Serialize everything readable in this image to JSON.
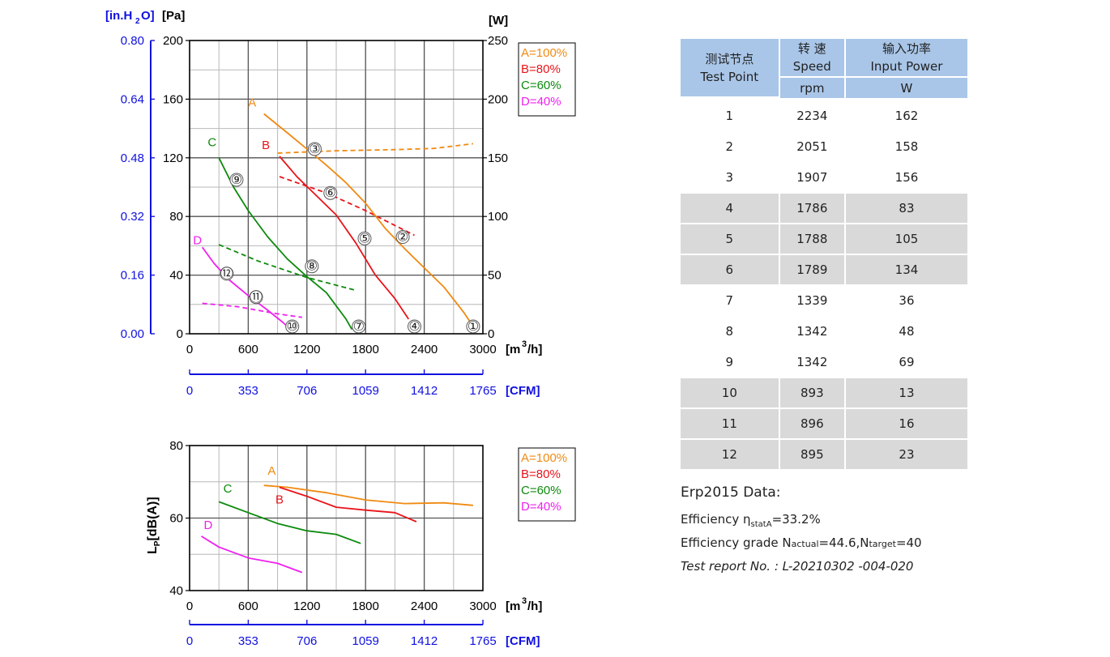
{
  "chart_data": [
    {
      "type": "line",
      "title": "",
      "units": {
        "left_outer": "[in.H2O]",
        "left_inner": "[Pa]",
        "right": "[W]",
        "x": "[m3/h]",
        "x_cfm": "[CFM]"
      },
      "xlim": [
        0,
        3000
      ],
      "ylim": [
        0,
        200
      ],
      "y2lim": [
        0,
        250
      ],
      "y_inh2o_lim": [
        0,
        0.8
      ],
      "x_ticks": [
        0,
        600,
        1200,
        1800,
        2400,
        3000
      ],
      "cfm_ticks": [
        0,
        353,
        706,
        1059,
        1412,
        1765
      ],
      "y_ticks": [
        0,
        40,
        80,
        120,
        160,
        200
      ],
      "y_inh2o_ticks": [
        "0.00",
        "0.16",
        "0.32",
        "0.48",
        "0.64",
        "0.80"
      ],
      "y2_ticks": [
        0,
        50,
        100,
        150,
        200,
        250
      ],
      "grid": true,
      "legend_position": "top-right",
      "legend": [
        "A=100%",
        "B=80%",
        "C=60%",
        "D=40%"
      ],
      "colors": {
        "A": "#f08a12",
        "B": "#e8141a",
        "C": "#0c8a0c",
        "D": "#f020f0"
      },
      "pressure_series": [
        {
          "name": "A",
          "x": [
            760,
            1000,
            1200,
            1400,
            1600,
            1800,
            2000,
            2200,
            2400,
            2600,
            2800,
            2900
          ],
          "y": [
            150,
            137,
            126,
            115,
            103,
            89,
            72,
            58,
            45,
            32,
            15,
            5
          ]
        },
        {
          "name": "B",
          "x": [
            920,
            1100,
            1300,
            1500,
            1700,
            1900,
            2100,
            2240
          ],
          "y": [
            121,
            107,
            94,
            81,
            62,
            40,
            24,
            10
          ]
        },
        {
          "name": "C",
          "x": [
            300,
            450,
            600,
            800,
            1000,
            1200,
            1400,
            1600,
            1660
          ],
          "y": [
            120,
            100,
            84,
            66,
            51,
            39,
            28,
            10,
            3
          ]
        },
        {
          "name": "D",
          "x": [
            130,
            250,
            400,
            600,
            800,
            950,
            1050
          ],
          "y": [
            59,
            48,
            37,
            26,
            16,
            8,
            2
          ]
        }
      ],
      "power_series": [
        {
          "name": "A",
          "x": [
            900,
            1500,
            2100,
            2500,
            2900
          ],
          "y": [
            154,
            156,
            157,
            158,
            162
          ]
        },
        {
          "name": "B",
          "x": [
            920,
            1400,
            1800,
            2300
          ],
          "y": [
            134,
            120,
            105,
            84
          ]
        },
        {
          "name": "C",
          "x": [
            300,
            700,
            1200,
            1700
          ],
          "y": [
            76,
            62,
            48,
            37
          ]
        },
        {
          "name": "D",
          "x": [
            130,
            500,
            900,
            1150
          ],
          "y": [
            26,
            23,
            17,
            14
          ]
        }
      ],
      "curve_labels": [
        {
          "text": "A",
          "x": 640,
          "y": 155
        },
        {
          "text": "B",
          "x": 780,
          "y": 126
        },
        {
          "text": "C",
          "x": 230,
          "y": 128
        },
        {
          "text": "D",
          "x": 80,
          "y": 61
        }
      ],
      "test_point_markers": [
        {
          "label": "①",
          "x": 2900,
          "y": 5
        },
        {
          "label": "②",
          "x": 2180,
          "y": 66
        },
        {
          "label": "③",
          "x": 1280,
          "y": 126
        },
        {
          "label": "④",
          "x": 2300,
          "y": 5
        },
        {
          "label": "⑤",
          "x": 1790,
          "y": 65
        },
        {
          "label": "⑥",
          "x": 1440,
          "y": 96
        },
        {
          "label": "⑦",
          "x": 1730,
          "y": 5
        },
        {
          "label": "⑧",
          "x": 1250,
          "y": 46
        },
        {
          "label": "⑨",
          "x": 480,
          "y": 105
        },
        {
          "label": "⑩",
          "x": 1050,
          "y": 5
        },
        {
          "label": "⑪",
          "x": 680,
          "y": 25
        },
        {
          "label": "⑫",
          "x": 380,
          "y": 41
        }
      ]
    },
    {
      "type": "line",
      "title": "",
      "ylabel": "LP[dB(A)]",
      "units": {
        "x": "[m3/h]",
        "x_cfm": "[CFM]"
      },
      "xlim": [
        0,
        3000
      ],
      "ylim": [
        40,
        80
      ],
      "x_ticks": [
        0,
        600,
        1200,
        1800,
        2400,
        3000
      ],
      "cfm_ticks": [
        0,
        353,
        706,
        1059,
        1412,
        1765
      ],
      "y_ticks": [
        40,
        60,
        80
      ],
      "grid": true,
      "legend_position": "top-right",
      "legend": [
        "A=100%",
        "B=80%",
        "C=60%",
        "D=40%"
      ],
      "series": [
        {
          "name": "A",
          "x": [
            760,
            1000,
            1400,
            1800,
            2200,
            2600,
            2900
          ],
          "y": [
            69,
            68.5,
            67,
            65,
            64,
            64.2,
            63.5
          ]
        },
        {
          "name": "B",
          "x": [
            920,
            1200,
            1500,
            1800,
            2100,
            2320
          ],
          "y": [
            68.5,
            66,
            63,
            62.2,
            61.5,
            59
          ]
        },
        {
          "name": "C",
          "x": [
            300,
            600,
            900,
            1200,
            1500,
            1750
          ],
          "y": [
            64.5,
            61.5,
            58.5,
            56.5,
            55.5,
            53
          ]
        },
        {
          "name": "D",
          "x": [
            120,
            300,
            600,
            900,
            1150
          ],
          "y": [
            55,
            52,
            49,
            47.5,
            45
          ]
        }
      ],
      "curve_labels": [
        {
          "text": "A",
          "x": 840,
          "y": 72
        },
        {
          "text": "B",
          "x": 920,
          "y": 64
        },
        {
          "text": "C",
          "x": 390,
          "y": 67
        },
        {
          "text": "D",
          "x": 190,
          "y": 57
        }
      ]
    }
  ],
  "table": {
    "headers": {
      "test_point_cn": "测试节点",
      "test_point_en": "Test Point",
      "speed_cn": "转 速",
      "speed_en": "Speed",
      "speed_unit": "rpm",
      "power_cn": "输入功率",
      "power_en": "Input Power",
      "power_unit": "W"
    },
    "rows": [
      {
        "point": "1",
        "speed": "2234",
        "power": "162",
        "shaded": false
      },
      {
        "point": "2",
        "speed": "2051",
        "power": "158",
        "shaded": false
      },
      {
        "point": "3",
        "speed": "1907",
        "power": "156",
        "shaded": false
      },
      {
        "point": "4",
        "speed": "1786",
        "power": "83",
        "shaded": true
      },
      {
        "point": "5",
        "speed": "1788",
        "power": "105",
        "shaded": true
      },
      {
        "point": "6",
        "speed": "1789",
        "power": "134",
        "shaded": true
      },
      {
        "point": "7",
        "speed": "1339",
        "power": "36",
        "shaded": false
      },
      {
        "point": "8",
        "speed": "1342",
        "power": "48",
        "shaded": false
      },
      {
        "point": "9",
        "speed": "1342",
        "power": "69",
        "shaded": false
      },
      {
        "point": "10",
        "speed": "893",
        "power": "13",
        "shaded": true
      },
      {
        "point": "11",
        "speed": "896",
        "power": "16",
        "shaded": true
      },
      {
        "point": "12",
        "speed": "895",
        "power": "23",
        "shaded": true
      }
    ]
  },
  "erp": {
    "title": "Erp2015  Data:",
    "efficiency_prefix": "Efficiency η",
    "efficiency_sub": "statA",
    "efficiency_value": "=33.2%",
    "grade_prefix": "Efficiency grade N",
    "grade_actual_sub": "actual",
    "grade_actual_value": "=44.6,N",
    "grade_target_sub": "target",
    "grade_target_value": "=40",
    "report": "Test report No.  : L-20210302 -004-020"
  }
}
